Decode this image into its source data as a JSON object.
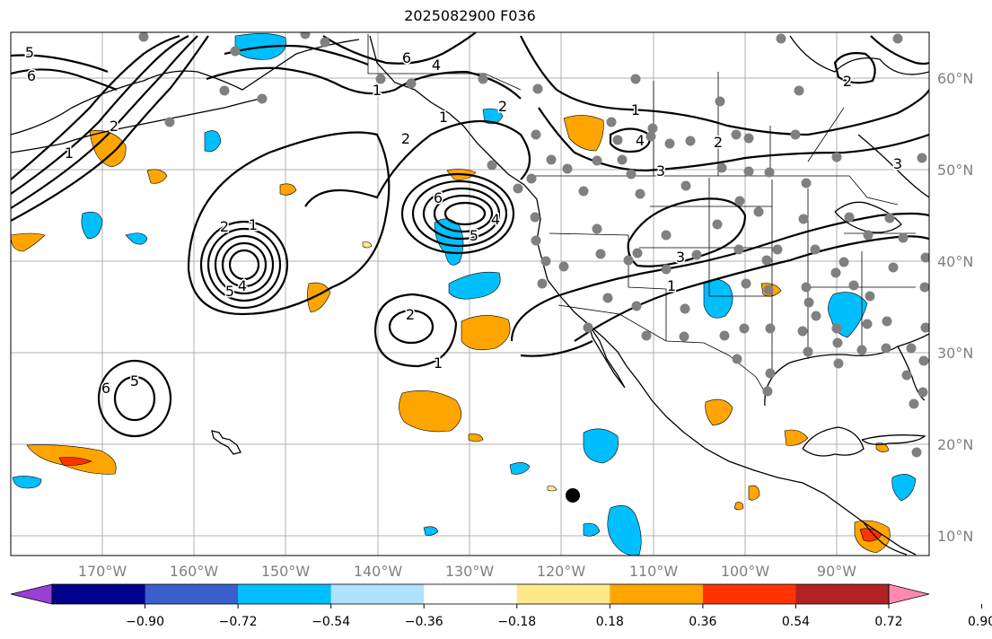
{
  "title": "2025082900 F036",
  "map": {
    "lon_labels": [
      "170°W",
      "160°W",
      "150°W",
      "140°W",
      "130°W",
      "120°W",
      "110°W",
      "100°W",
      "90°W"
    ],
    "lat_labels": [
      "60°N",
      "50°N",
      "40°N",
      "30°N",
      "20°N",
      "10°N"
    ],
    "contour_labels": [
      "5",
      "6",
      "2",
      "1",
      "6",
      "5",
      "4",
      "2",
      "6",
      "4",
      "1",
      "2",
      "4",
      "3",
      "3",
      "1",
      "3",
      "2",
      "1",
      "6",
      "5",
      "4",
      "2",
      "1",
      "2",
      "1",
      "1",
      "2",
      "5"
    ],
    "colors": {
      "axis_label": "#808080",
      "grid": "#b0b0b0",
      "land": "#000000",
      "contour": "#000000",
      "station": "#808080",
      "marker": "#000000"
    }
  },
  "colorbar": {
    "tick_labels": [
      "−0.90",
      "−0.72",
      "−0.54",
      "−0.36",
      "−0.18",
      "0.18",
      "0.36",
      "0.54",
      "0.72",
      "0.90"
    ],
    "bins": [
      "#9a3fd6",
      "#00008b",
      "#3a5fcd",
      "#00bfff",
      "#b0e2ff",
      "#ffffff",
      "#ffe98a",
      "#ffa500",
      "#ff3300",
      "#b22222",
      "#ff89b0"
    ]
  }
}
